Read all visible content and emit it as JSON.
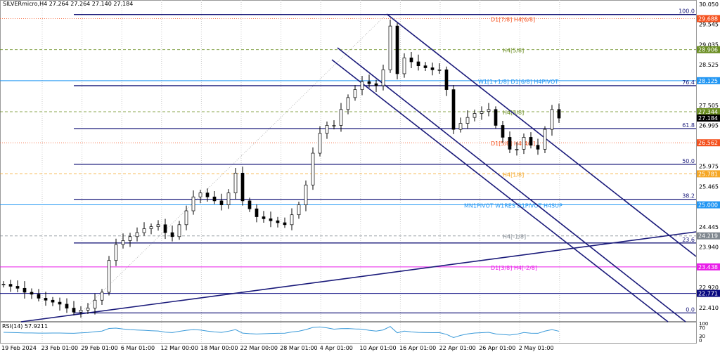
{
  "header": {
    "title": "SILVERmicro,H4  27.264 27.264 27.140 27.184"
  },
  "chart_data": {
    "type": "candlestick",
    "symbol": "SILVERmicro",
    "timeframe": "H4",
    "ylim": [
      22.41,
      30.05
    ],
    "y_ticks": [
      "30.050",
      "29.545",
      "29.035",
      "28.525",
      "27.505",
      "26.995",
      "25.975",
      "25.465",
      "24.445",
      "23.940",
      "22.920",
      "22.410"
    ],
    "x_ticks": [
      "19 Feb 2024",
      "23 Feb 01:00",
      "29 Feb 01:00",
      "6 Mar 01:00",
      "12 Mar 00:00",
      "18 Mar 00:00",
      "22 Mar 00:00",
      "28 Mar 01:00",
      "4 Apr 01:00",
      "10 Apr 01:00",
      "16 Apr 01:00",
      "22 Apr 01:00",
      "26 Apr 01:00",
      "2 May 01:00"
    ],
    "closes": [
      23.0,
      22.95,
      22.9,
      22.8,
      22.75,
      22.65,
      22.6,
      22.55,
      22.5,
      22.4,
      22.3,
      22.35,
      22.4,
      22.6,
      22.8,
      23.6,
      24.0,
      24.1,
      24.2,
      24.3,
      24.4,
      24.45,
      24.5,
      24.3,
      24.2,
      24.5,
      24.85,
      25.2,
      25.3,
      25.2,
      25.1,
      25.0,
      25.3,
      25.8,
      25.1,
      24.9,
      24.7,
      24.65,
      24.6,
      24.55,
      24.5,
      24.75,
      25.0,
      25.5,
      26.3,
      26.8,
      27.0,
      27.0,
      27.4,
      27.7,
      27.9,
      28.1,
      28.05,
      28.0,
      28.4,
      29.5,
      28.3,
      28.7,
      28.6,
      28.5,
      28.45,
      28.4,
      28.4,
      27.9,
      26.9,
      27.05,
      27.2,
      27.3,
      27.35,
      27.4,
      27.0,
      26.7,
      26.4,
      26.4,
      26.7,
      26.5,
      26.4,
      26.9,
      27.4,
      27.184
    ],
    "current_price": {
      "value": "27.184",
      "color": "#000000"
    },
    "levels": [
      {
        "price": 29.688,
        "label": "D1[7/8] H4[6/8]",
        "tag": "29.688",
        "color": "#f4511e",
        "style": "dotted"
      },
      {
        "price": 28.906,
        "label": "H4[5/8]",
        "tag": "28.906",
        "color": "#6b8e23",
        "style": "dashed"
      },
      {
        "price": 28.125,
        "label": "W1[1+1/8] D1[6/8] H4PIVOT",
        "tag": "28.125",
        "color": "#2196f3",
        "style": "solid"
      },
      {
        "price": 27.344,
        "label": "H4[3/8]",
        "tag": "27.344",
        "color": "#6b8e23",
        "style": "dashed"
      },
      {
        "price": 26.562,
        "label": "D1[5/8] H4[4/8]",
        "tag": "26.562",
        "color": "#f4511e",
        "style": "dotted"
      },
      {
        "price": 25.781,
        "label": "H4[1/8]",
        "tag": "25.781",
        "color": "#f5a623",
        "style": "dashed"
      },
      {
        "price": 25.0,
        "label": "MN1PIVOT W1RES D1PIVOT H4SUP",
        "tag": "25.000",
        "color": "#2196f3",
        "style": "solid"
      },
      {
        "price": 24.219,
        "label": "H4[-1/8]",
        "tag": "24.219",
        "color": "#808890",
        "style": "dashed"
      },
      {
        "price": 23.438,
        "label": "D1[3/8] H4[-2/8]",
        "tag": "23.438",
        "color": "#e91ee9",
        "style": "solid"
      },
      {
        "price": 22.771,
        "label": "",
        "tag": "22.771",
        "color": "#0a0a80",
        "style": "solid"
      }
    ],
    "fibonacci": {
      "color": "#1a1a7a",
      "levels": [
        {
          "label": "100.0",
          "price": 29.79
        },
        {
          "label": "76.4",
          "price": 28.0
        },
        {
          "label": "61.8",
          "price": 26.92
        },
        {
          "label": "50.0",
          "price": 26.02
        },
        {
          "label": "38.2",
          "price": 25.14
        },
        {
          "label": "23.6",
          "price": 24.04
        },
        {
          "label": "0.0",
          "price": 22.28
        }
      ]
    },
    "indicator": {
      "label": "RSI(14) 57.9211",
      "ticks": [
        "100",
        "70",
        "30",
        "0"
      ],
      "color": "#3a9ad9"
    }
  }
}
